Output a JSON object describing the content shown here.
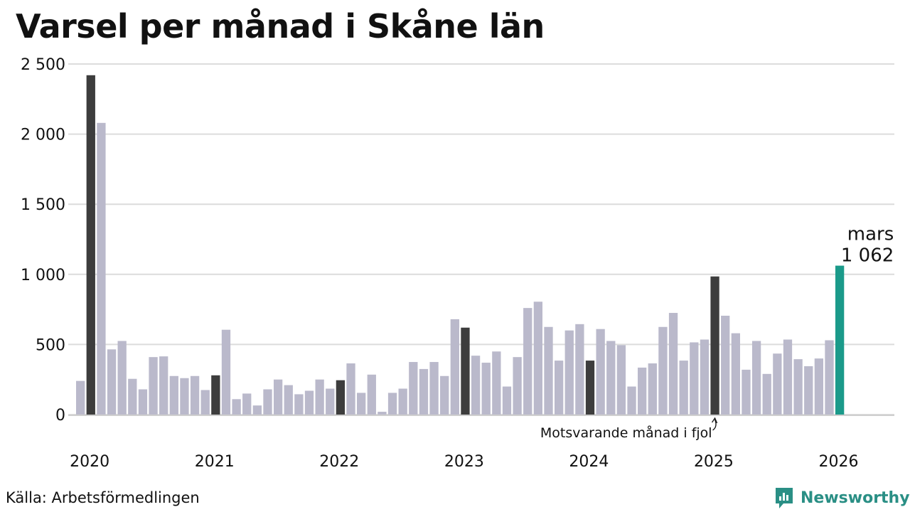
{
  "title": "Varsel per månad i Skåne län",
  "source": "Källa: Arbetsförmedlingen",
  "brand": "Newsworthy",
  "colors": {
    "regular": "#bab9cb",
    "same_month": "#3d3d3d",
    "current": "#1b9a8a",
    "grid": "#dcdcdc",
    "brand": "#2a8f85"
  },
  "chart_data": {
    "type": "bar",
    "title": "Varsel per månad i Skåne län",
    "xlabel": "",
    "ylabel": "",
    "ylim": [
      0,
      2500
    ],
    "yticks": [
      0,
      500,
      1000,
      1500,
      2000,
      2500
    ],
    "ytick_labels": [
      "0",
      "500",
      "1 000",
      "1 500",
      "2 000",
      "2 500"
    ],
    "xtick_labels": [
      "2020",
      "2021",
      "2022",
      "2023",
      "2024",
      "2025",
      "2026"
    ],
    "xtick_positions": [
      0,
      12,
      24,
      36,
      48,
      60,
      72
    ],
    "grid": true,
    "values": [
      240,
      2420,
      2080,
      465,
      525,
      255,
      180,
      410,
      415,
      275,
      260,
      275,
      175,
      280,
      605,
      110,
      150,
      65,
      180,
      250,
      210,
      145,
      170,
      250,
      185,
      245,
      365,
      155,
      285,
      20,
      155,
      185,
      375,
      325,
      375,
      275,
      680,
      620,
      420,
      370,
      450,
      200,
      410,
      760,
      805,
      625,
      385,
      600,
      645,
      385,
      610,
      525,
      495,
      200,
      335,
      365,
      625,
      725,
      385,
      515,
      535,
      985,
      705,
      580,
      320,
      525,
      290,
      435,
      535,
      395,
      345,
      400,
      530,
      1062
    ],
    "highlight_indices": [
      1,
      13,
      25,
      37,
      49,
      61
    ],
    "current_index": 73,
    "current_label": "mars",
    "current_value_label": "1 062",
    "annotation": "Motsvarande månad i fjol"
  }
}
